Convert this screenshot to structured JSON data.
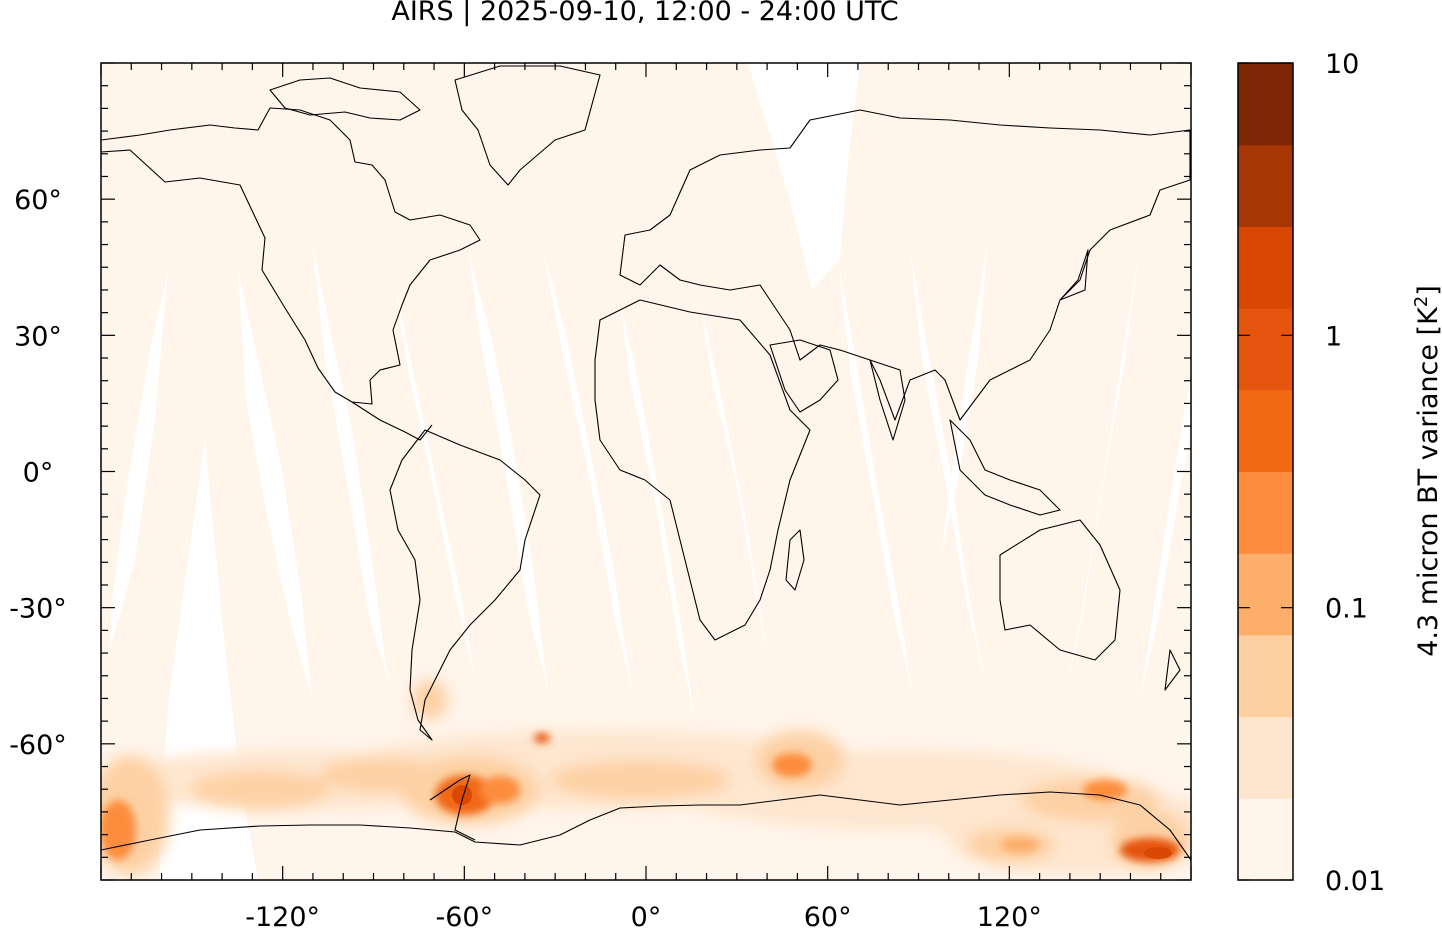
{
  "title": "AIRS | 2025-09-10, 12:00 - 24:00 UTC",
  "map": {
    "projection": "equirectangular",
    "lon_range": [
      -180,
      180
    ],
    "lat_range": [
      -90,
      90
    ],
    "lon_ticks": [
      {
        "value": -120,
        "label": "-120°"
      },
      {
        "value": -60,
        "label": "-60°"
      },
      {
        "value": 0,
        "label": "0°"
      },
      {
        "value": 60,
        "label": "60°"
      },
      {
        "value": 120,
        "label": "120°"
      }
    ],
    "lat_ticks": [
      {
        "value": 60,
        "label": "60°"
      },
      {
        "value": 30,
        "label": "30°"
      },
      {
        "value": 0,
        "label": "0°"
      },
      {
        "value": -30,
        "label": "-30°"
      },
      {
        "value": -60,
        "label": "-60°"
      }
    ],
    "background_color": "#fff5eb",
    "coastline_color": "#000000"
  },
  "colorbar": {
    "label": "4.3 micron BT variance [K²]",
    "label_base": "4.3 micron BT variance [K",
    "label_sup": "2",
    "label_end": "]",
    "scale": "log",
    "range": [
      0.01,
      10
    ],
    "ticks": [
      {
        "value": 10,
        "label": "10"
      },
      {
        "value": 1,
        "label": "1"
      },
      {
        "value": 0.1,
        "label": "0.1"
      },
      {
        "value": 0.01,
        "label": "0.01"
      }
    ],
    "colors": [
      "#fff5eb",
      "#fee6ce",
      "#fdd0a2",
      "#fdae6b",
      "#fd8d3c",
      "#f16913",
      "#e6550d",
      "#d94801",
      "#a63603",
      "#7f2704"
    ]
  }
}
